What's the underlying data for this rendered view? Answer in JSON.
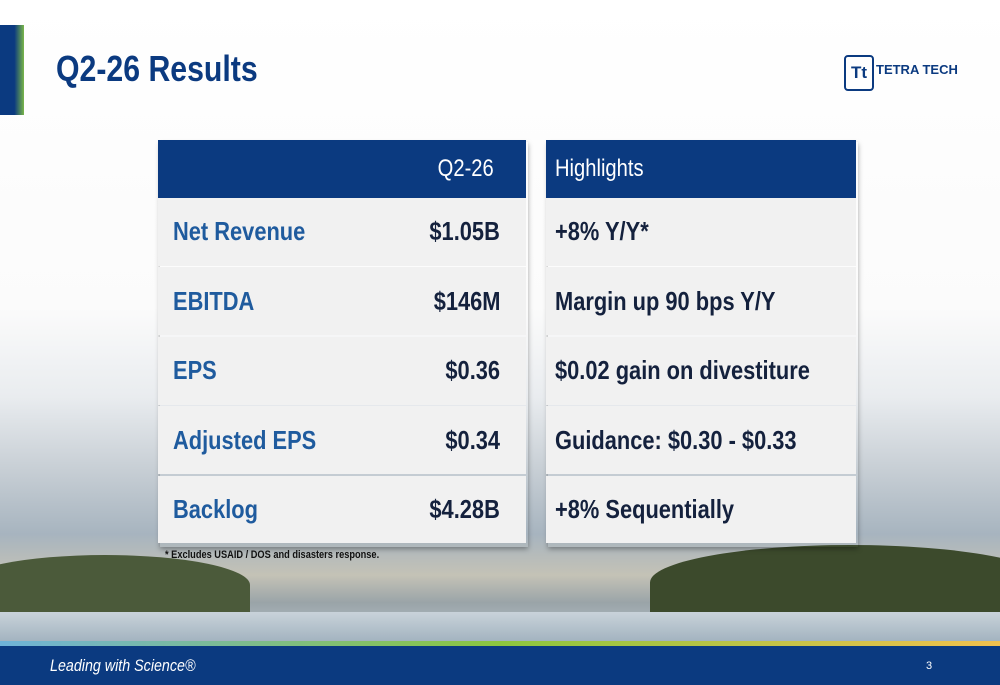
{
  "header": {
    "title": "Q2-26 Results",
    "logo": {
      "mark": "Tt",
      "name": "TETRA TECH"
    }
  },
  "results_table": {
    "column_header": "Q2-26",
    "rows": [
      [
        "Net Revenue",
        "$1.05B"
      ],
      [
        "EBITDA",
        "$146M"
      ],
      [
        "EPS",
        "$0.36"
      ],
      [
        "Adjusted EPS",
        "$0.34"
      ],
      [
        "Backlog",
        "$4.28B"
      ]
    ]
  },
  "highlights": {
    "header": "Highlights",
    "items": [
      "+8% Y/Y*",
      "Margin up 90 bps Y/Y",
      "$0.02 gain on divestiture",
      "Guidance: $0.30 - $0.33",
      "+8% Sequentially"
    ]
  },
  "footnote": "* Excludes USAID / DOS and disasters response.",
  "footer": {
    "tagline": "Leading with Science®",
    "page_number": "3"
  }
}
